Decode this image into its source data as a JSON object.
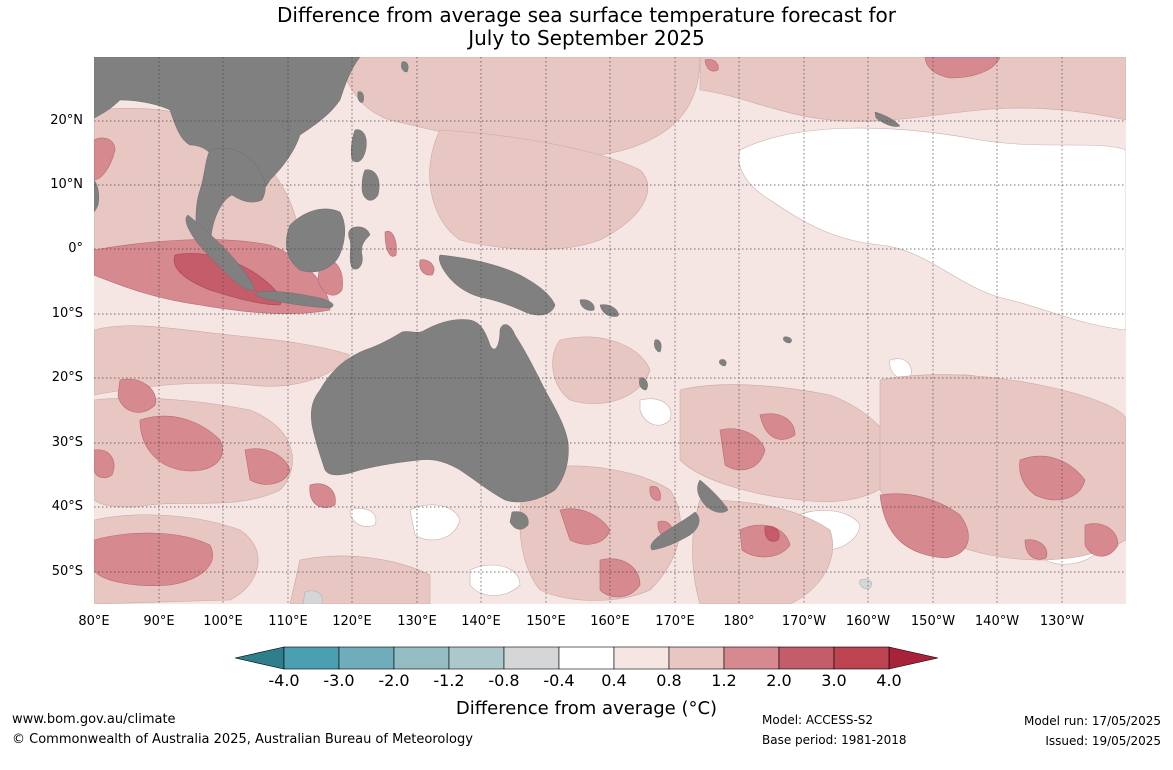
{
  "title": {
    "line1": "Difference from average sea surface temperature forecast for",
    "line2": "July to September 2025"
  },
  "map": {
    "region": "Indian Ocean, Maritime Continent, Australia and western/central Pacific",
    "land_color": "#808080",
    "lat_labels": [
      "20°N",
      "10°N",
      "0°",
      "10°S",
      "20°S",
      "30°S",
      "40°S",
      "50°S"
    ],
    "lon_labels": [
      "80°E",
      "90°E",
      "100°E",
      "110°E",
      "120°E",
      "130°E",
      "140°E",
      "150°E",
      "160°E",
      "170°E",
      "180°",
      "170°W",
      "160°W",
      "150°W",
      "140°W",
      "130°W"
    ],
    "background_anomaly_class": "0.4 to 0.8",
    "features": [
      {
        "name": "warm anomaly band west of Sumatra/Java",
        "class": "1.2 to 2.0, core 2.0 to 3.0"
      },
      {
        "name": "equatorial central/eastern Pacific",
        "class": "-0.4 to 0.4"
      },
      {
        "name": "South Pacific east of New Zealand",
        "class": "1.2 to 2.0"
      },
      {
        "name": "southern Indian Ocean patches",
        "class": "1.2 to 2.0"
      }
    ]
  },
  "colorbar": {
    "ticks": [
      "-4.0",
      "-3.0",
      "-2.0",
      "-1.2",
      "-0.8",
      "-0.4",
      "0.4",
      "0.8",
      "1.2",
      "2.0",
      "3.0",
      "4.0"
    ],
    "colors": [
      "#2e7e8c",
      "#4aa0b1",
      "#6fadba",
      "#93bcc3",
      "#adc8cc",
      "#d4d6d8",
      "#ffffff",
      "#f5e6e4",
      "#e8c6c2",
      "#d6898f",
      "#c45c69",
      "#bc4350",
      "#a8223a"
    ],
    "title": "Difference from average (°C)"
  },
  "footer": {
    "website": "www.bom.gov.au/climate",
    "copyright": "© Commonwealth of Australia 2025, Australian Bureau of Meteorology",
    "model": "Model: ACCESS-S2",
    "base_period": "Base period: 1981-2018",
    "model_run": "Model run: 17/05/2025",
    "issued": "Issued: 19/05/2025"
  }
}
